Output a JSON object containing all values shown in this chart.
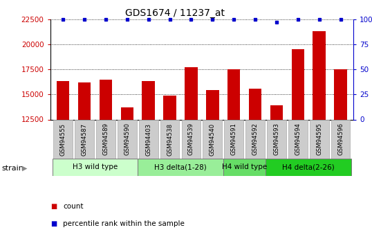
{
  "title": "GDS1674 / 11237_at",
  "categories": [
    "GSM94555",
    "GSM94587",
    "GSM94589",
    "GSM94590",
    "GSM94403",
    "GSM94538",
    "GSM94539",
    "GSM94540",
    "GSM94591",
    "GSM94592",
    "GSM94593",
    "GSM94594",
    "GSM94595",
    "GSM94596"
  ],
  "bar_values": [
    16300,
    16200,
    16500,
    13700,
    16300,
    14900,
    17700,
    15400,
    17500,
    15600,
    13900,
    19500,
    21300,
    17500
  ],
  "percentile_values": [
    100,
    100,
    100,
    100,
    100,
    100,
    100,
    100,
    100,
    100,
    97,
    100,
    100,
    100
  ],
  "bar_color": "#cc0000",
  "dot_color": "#0000cc",
  "ylim_left": [
    12500,
    22500
  ],
  "ylim_right": [
    0,
    100
  ],
  "yticks_left": [
    12500,
    15000,
    17500,
    20000,
    22500
  ],
  "yticks_right": [
    0,
    25,
    50,
    75,
    100
  ],
  "ytick_labels_right": [
    "0",
    "25",
    "50",
    "75",
    "100%"
  ],
  "groups": [
    {
      "label": "H3 wild type",
      "start": 0,
      "end": 3,
      "color": "#ccffcc"
    },
    {
      "label": "H3 delta(1-28)",
      "start": 4,
      "end": 7,
      "color": "#99ee99"
    },
    {
      "label": "H4 wild type",
      "start": 8,
      "end": 9,
      "color": "#66dd66"
    },
    {
      "label": "H4 delta(2-26)",
      "start": 10,
      "end": 13,
      "color": "#22cc22"
    }
  ],
  "strain_label": "strain",
  "legend_count_label": "count",
  "legend_percentile_label": "percentile rank within the sample",
  "title_color": "#000000",
  "left_axis_color": "#cc0000",
  "right_axis_color": "#0000cc",
  "tick_bg_color": "#cccccc",
  "tick_edge_color": "#aaaaaa",
  "dotted_grid_color": "#000000",
  "spine_color": "#000000"
}
